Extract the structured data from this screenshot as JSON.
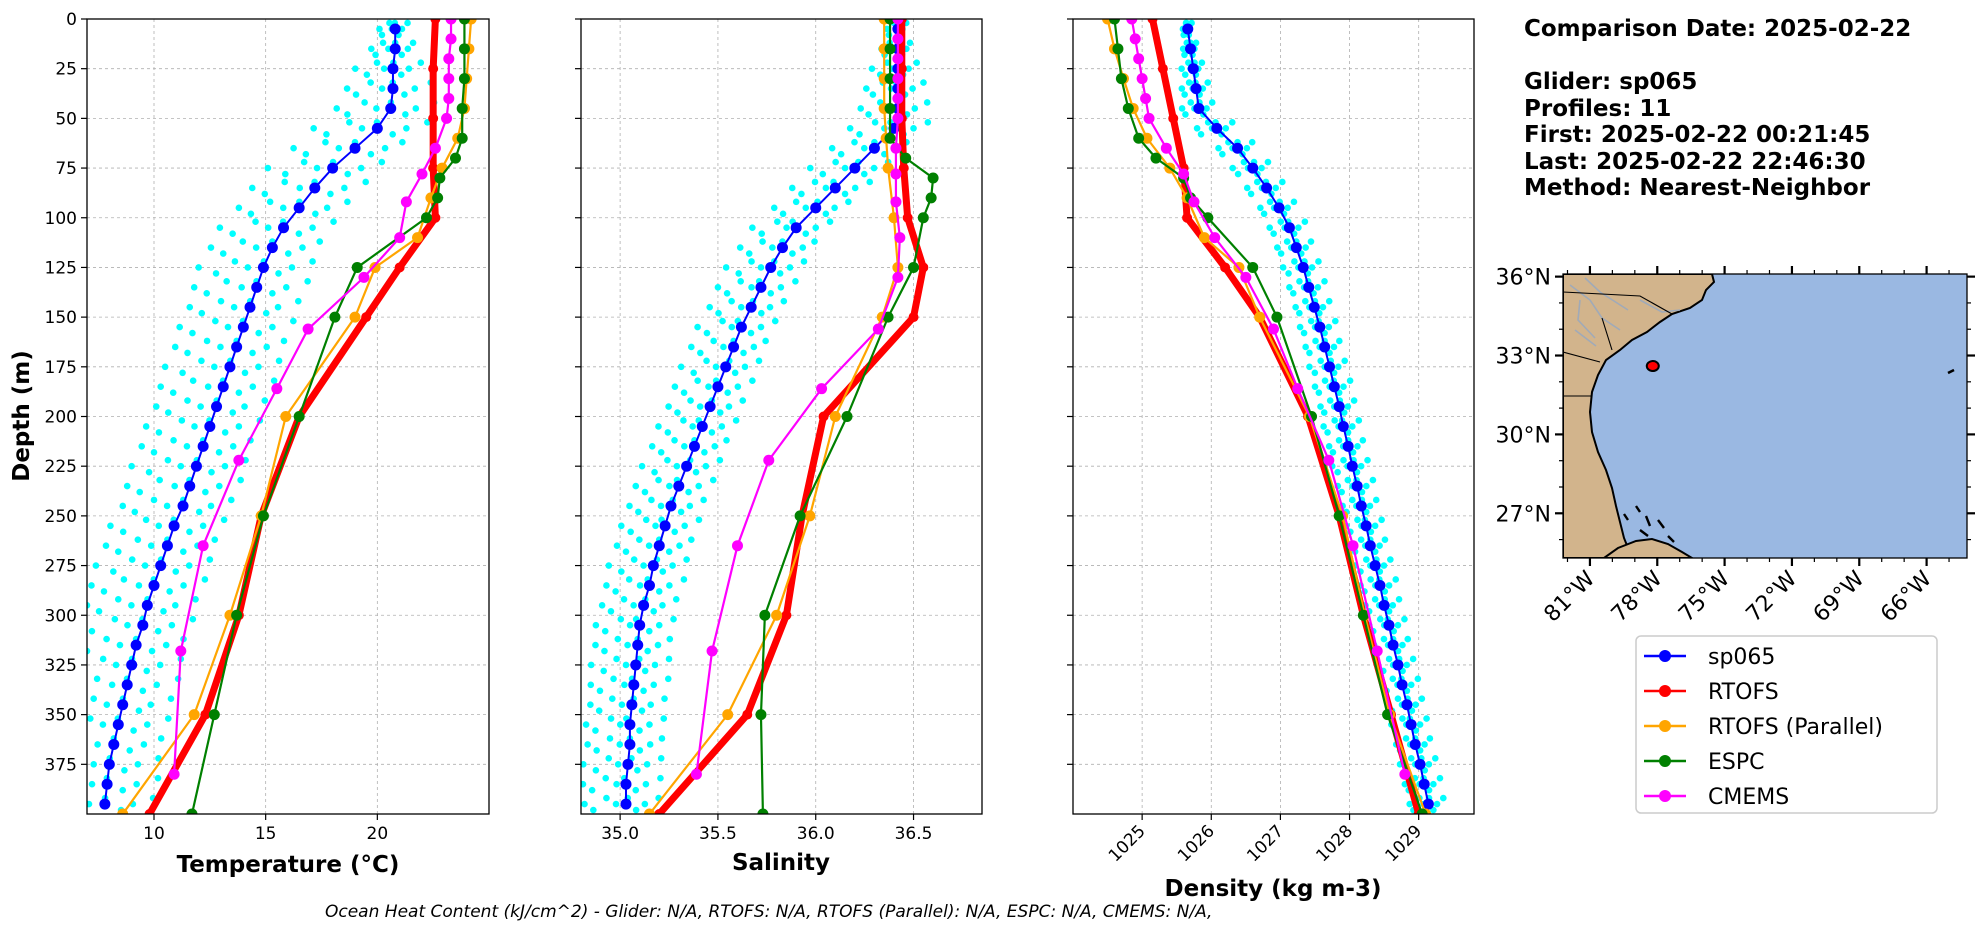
{
  "info": {
    "comparison_date": "Comparison Date: 2025-02-22",
    "glider": "Glider: sp065",
    "profiles": "Profiles: 11",
    "first": "First: 2025-02-22 00:21:45",
    "last": "Last: 2025-02-22 22:46:30",
    "method": "Method: Nearest-Neighbor"
  },
  "footer": "Ocean Heat Content (kJ/cm^2) - Glider: N/A,  RTOFS: N/A,  RTOFS (Parallel): N/A,  ESPC: N/A,  CMEMS: N/A,",
  "colors": {
    "sp065": "#0000ff",
    "sp065_profiles": "#00ffff",
    "RTOFS": "#ff0000",
    "RTOFS (Parallel)": "#ffa500",
    "ESPC": "#008000",
    "CMEMS": "#ff00ff",
    "land": "#d2b48c",
    "ocean": "#9ab8e2",
    "grid": "#b0b0b0"
  },
  "legend": [
    "sp065",
    "RTOFS",
    "RTOFS (Parallel)",
    "ESPC",
    "CMEMS"
  ],
  "map": {
    "lat_ticks": [
      "36°N",
      "33°N",
      "30°N",
      "27°N"
    ],
    "lon_ticks": [
      "81°W",
      "78°W",
      "75°W",
      "72°W",
      "69°W",
      "66°W"
    ],
    "extent": {
      "lon": [
        -82.2,
        -64.2
      ],
      "lat": [
        25.3,
        36.1
      ]
    },
    "glider_position": {
      "lon": -78.2,
      "lat": 32.6
    }
  },
  "chart_data": [
    {
      "type": "line",
      "xlabel": "Temperature (°C)",
      "ylabel": "Depth (m)",
      "xlim": [
        7,
        25
      ],
      "ylim": [
        400,
        0
      ],
      "x_ticks": [
        10,
        15,
        20
      ],
      "y_ticks": [
        0,
        25,
        50,
        75,
        100,
        125,
        150,
        175,
        200,
        225,
        250,
        275,
        300,
        325,
        350,
        375
      ],
      "grid": true,
      "depth": [
        5,
        15,
        25,
        35,
        45,
        55,
        65,
        75,
        85,
        95,
        105,
        115,
        125,
        135,
        145,
        155,
        165,
        175,
        185,
        195,
        205,
        215,
        225,
        235,
        245,
        255,
        265,
        275,
        285,
        295,
        305,
        315,
        325,
        335,
        345,
        355,
        365,
        375,
        385,
        395
      ],
      "glider_mean": [
        20.8,
        20.8,
        20.7,
        20.7,
        20.6,
        20.0,
        19.0,
        18.0,
        17.2,
        16.5,
        15.8,
        15.3,
        14.9,
        14.6,
        14.3,
        14.0,
        13.7,
        13.4,
        13.1,
        12.8,
        12.5,
        12.2,
        11.9,
        11.6,
        11.3,
        10.9,
        10.6,
        10.3,
        10.0,
        9.7,
        9.5,
        9.2,
        9.0,
        8.8,
        8.6,
        8.4,
        8.2,
        8.0,
        7.9,
        7.8
      ],
      "glider_spread": [
        0.0,
        -0.7,
        0.7,
        -1.3,
        1.3,
        -2.2,
        2.2,
        -2.8
      ],
      "series": [
        {
          "name": "RTOFS",
          "depth": [
            0,
            25,
            50,
            75,
            100,
            125,
            150,
            200,
            250,
            300,
            350,
            400
          ],
          "values": [
            22.6,
            22.5,
            22.5,
            22.5,
            22.6,
            21.0,
            19.5,
            16.5,
            14.8,
            13.8,
            12.3,
            9.8
          ]
        },
        {
          "name": "RTOFS (Parallel)",
          "depth": [
            0,
            15,
            30,
            45,
            60,
            75,
            90,
            110,
            125,
            150,
            200,
            250,
            300,
            350,
            400
          ],
          "values": [
            24.2,
            24.1,
            24.0,
            23.9,
            23.6,
            22.9,
            22.4,
            21.8,
            19.9,
            19.0,
            15.9,
            14.8,
            13.4,
            11.8,
            8.6
          ]
        },
        {
          "name": "ESPC",
          "depth": [
            0,
            15,
            30,
            45,
            60,
            70,
            80,
            90,
            100,
            125,
            150,
            200,
            250,
            300,
            350,
            400
          ],
          "values": [
            23.9,
            23.9,
            23.9,
            23.8,
            23.8,
            23.5,
            22.8,
            22.7,
            22.2,
            19.1,
            18.1,
            16.5,
            14.9,
            13.7,
            12.7,
            11.7
          ]
        },
        {
          "name": "CMEMS",
          "depth": [
            0,
            10,
            20,
            30,
            40,
            50,
            65,
            78,
            92,
            110,
            130,
            156,
            186,
            222,
            265,
            318,
            380
          ],
          "values": [
            23.3,
            23.3,
            23.2,
            23.2,
            23.2,
            23.1,
            22.6,
            22.0,
            21.3,
            21.0,
            19.4,
            16.9,
            15.5,
            13.8,
            12.2,
            11.2,
            10.9
          ]
        }
      ]
    },
    {
      "type": "line",
      "xlabel": "Salinity",
      "ylabel": "",
      "xlim": [
        34.8,
        36.85
      ],
      "ylim": [
        400,
        0
      ],
      "x_ticks": [
        35.0,
        35.5,
        36.0,
        36.5
      ],
      "grid": true,
      "depth": [
        5,
        15,
        25,
        35,
        45,
        55,
        65,
        75,
        85,
        95,
        105,
        115,
        125,
        135,
        145,
        155,
        165,
        175,
        185,
        195,
        205,
        215,
        225,
        235,
        245,
        255,
        265,
        275,
        285,
        295,
        305,
        315,
        325,
        335,
        345,
        355,
        365,
        375,
        385,
        395
      ],
      "glider_mean": [
        36.42,
        36.42,
        36.42,
        36.42,
        36.42,
        36.4,
        36.3,
        36.2,
        36.1,
        36.0,
        35.9,
        35.83,
        35.77,
        35.72,
        35.67,
        35.62,
        35.58,
        35.54,
        35.5,
        35.46,
        35.42,
        35.38,
        35.34,
        35.3,
        35.26,
        35.23,
        35.2,
        35.17,
        35.15,
        35.12,
        35.1,
        35.09,
        35.08,
        35.07,
        35.06,
        35.05,
        35.05,
        35.04,
        35.03,
        35.03
      ],
      "glider_spread": [
        0.0,
        -0.05,
        0.05,
        -0.1,
        0.1,
        -0.17,
        0.17,
        -0.22
      ],
      "series": [
        {
          "name": "RTOFS",
          "depth": [
            0,
            25,
            50,
            75,
            100,
            125,
            150,
            200,
            250,
            300,
            350,
            400
          ],
          "values": [
            36.44,
            36.44,
            36.44,
            36.45,
            36.47,
            36.55,
            36.5,
            36.04,
            35.93,
            35.85,
            35.65,
            35.2
          ]
        },
        {
          "name": "RTOFS (Parallel)",
          "depth": [
            0,
            15,
            30,
            45,
            60,
            75,
            100,
            125,
            150,
            200,
            250,
            300,
            350,
            400
          ],
          "values": [
            36.35,
            36.35,
            36.35,
            36.35,
            36.36,
            36.37,
            36.4,
            36.42,
            36.34,
            36.1,
            35.97,
            35.8,
            35.55,
            35.15
          ]
        },
        {
          "name": "ESPC",
          "depth": [
            0,
            15,
            30,
            45,
            60,
            70,
            80,
            90,
            100,
            125,
            150,
            200,
            250,
            300,
            350,
            400
          ],
          "values": [
            36.38,
            36.38,
            36.38,
            36.38,
            36.38,
            36.46,
            36.6,
            36.59,
            36.55,
            36.5,
            36.37,
            36.16,
            35.92,
            35.74,
            35.72,
            35.73
          ]
        },
        {
          "name": "CMEMS",
          "depth": [
            0,
            10,
            20,
            30,
            40,
            50,
            65,
            78,
            92,
            110,
            130,
            156,
            186,
            222,
            265,
            318,
            380
          ],
          "values": [
            36.42,
            36.42,
            36.42,
            36.42,
            36.42,
            36.42,
            36.41,
            36.41,
            36.41,
            36.43,
            36.42,
            36.32,
            36.03,
            35.76,
            35.6,
            35.47,
            35.39
          ]
        }
      ]
    },
    {
      "type": "line",
      "xlabel": "Density (kg m-3)",
      "ylabel": "",
      "xlim": [
        1024.0,
        1029.8
      ],
      "ylim": [
        400,
        0
      ],
      "x_ticks": [
        1025,
        1026,
        1027,
        1028,
        1029
      ],
      "grid": true,
      "depth": [
        5,
        15,
        25,
        35,
        45,
        55,
        65,
        75,
        85,
        95,
        105,
        115,
        125,
        135,
        145,
        155,
        165,
        175,
        185,
        195,
        205,
        215,
        225,
        235,
        245,
        255,
        265,
        275,
        285,
        295,
        305,
        315,
        325,
        335,
        345,
        355,
        365,
        375,
        385,
        395
      ],
      "glider_mean": [
        1025.66,
        1025.7,
        1025.74,
        1025.78,
        1025.82,
        1026.08,
        1026.38,
        1026.6,
        1026.8,
        1026.98,
        1027.13,
        1027.23,
        1027.33,
        1027.41,
        1027.49,
        1027.57,
        1027.64,
        1027.71,
        1027.78,
        1027.85,
        1027.91,
        1027.98,
        1028.04,
        1028.11,
        1028.17,
        1028.24,
        1028.3,
        1028.37,
        1028.44,
        1028.5,
        1028.57,
        1028.63,
        1028.7,
        1028.76,
        1028.83,
        1028.89,
        1028.95,
        1029.02,
        1029.08,
        1029.14
      ],
      "glider_spread": [
        0.0,
        -0.07,
        0.07,
        -0.13,
        0.13,
        -0.22,
        0.22,
        -0.28
      ],
      "series": [
        {
          "name": "RTOFS",
          "depth": [
            0,
            25,
            50,
            75,
            100,
            125,
            150,
            200,
            250,
            300,
            350,
            400
          ],
          "values": [
            1025.15,
            1025.3,
            1025.45,
            1025.6,
            1025.65,
            1026.2,
            1026.7,
            1027.4,
            1027.85,
            1028.2,
            1028.6,
            1029.0
          ]
        },
        {
          "name": "RTOFS (Parallel)",
          "depth": [
            0,
            15,
            30,
            45,
            60,
            75,
            90,
            110,
            125,
            150,
            200,
            250,
            300,
            350,
            400
          ],
          "values": [
            1024.5,
            1024.6,
            1024.73,
            1024.87,
            1025.07,
            1025.4,
            1025.65,
            1025.9,
            1026.4,
            1026.7,
            1027.42,
            1027.9,
            1028.22,
            1028.58,
            1029.1
          ]
        },
        {
          "name": "ESPC",
          "depth": [
            0,
            15,
            30,
            45,
            60,
            70,
            80,
            90,
            100,
            125,
            150,
            200,
            250,
            300,
            350,
            400
          ],
          "values": [
            1024.6,
            1024.65,
            1024.7,
            1024.8,
            1024.95,
            1025.2,
            1025.6,
            1025.7,
            1025.95,
            1026.6,
            1026.95,
            1027.45,
            1027.85,
            1028.2,
            1028.55,
            1029.05
          ]
        },
        {
          "name": "CMEMS",
          "depth": [
            0,
            10,
            20,
            30,
            40,
            50,
            65,
            78,
            92,
            110,
            130,
            156,
            186,
            222,
            265,
            318,
            380
          ],
          "values": [
            1024.85,
            1024.9,
            1024.95,
            1025.0,
            1025.05,
            1025.1,
            1025.35,
            1025.6,
            1025.75,
            1026.05,
            1026.5,
            1026.9,
            1027.25,
            1027.7,
            1028.05,
            1028.4,
            1028.8
          ]
        }
      ]
    }
  ]
}
